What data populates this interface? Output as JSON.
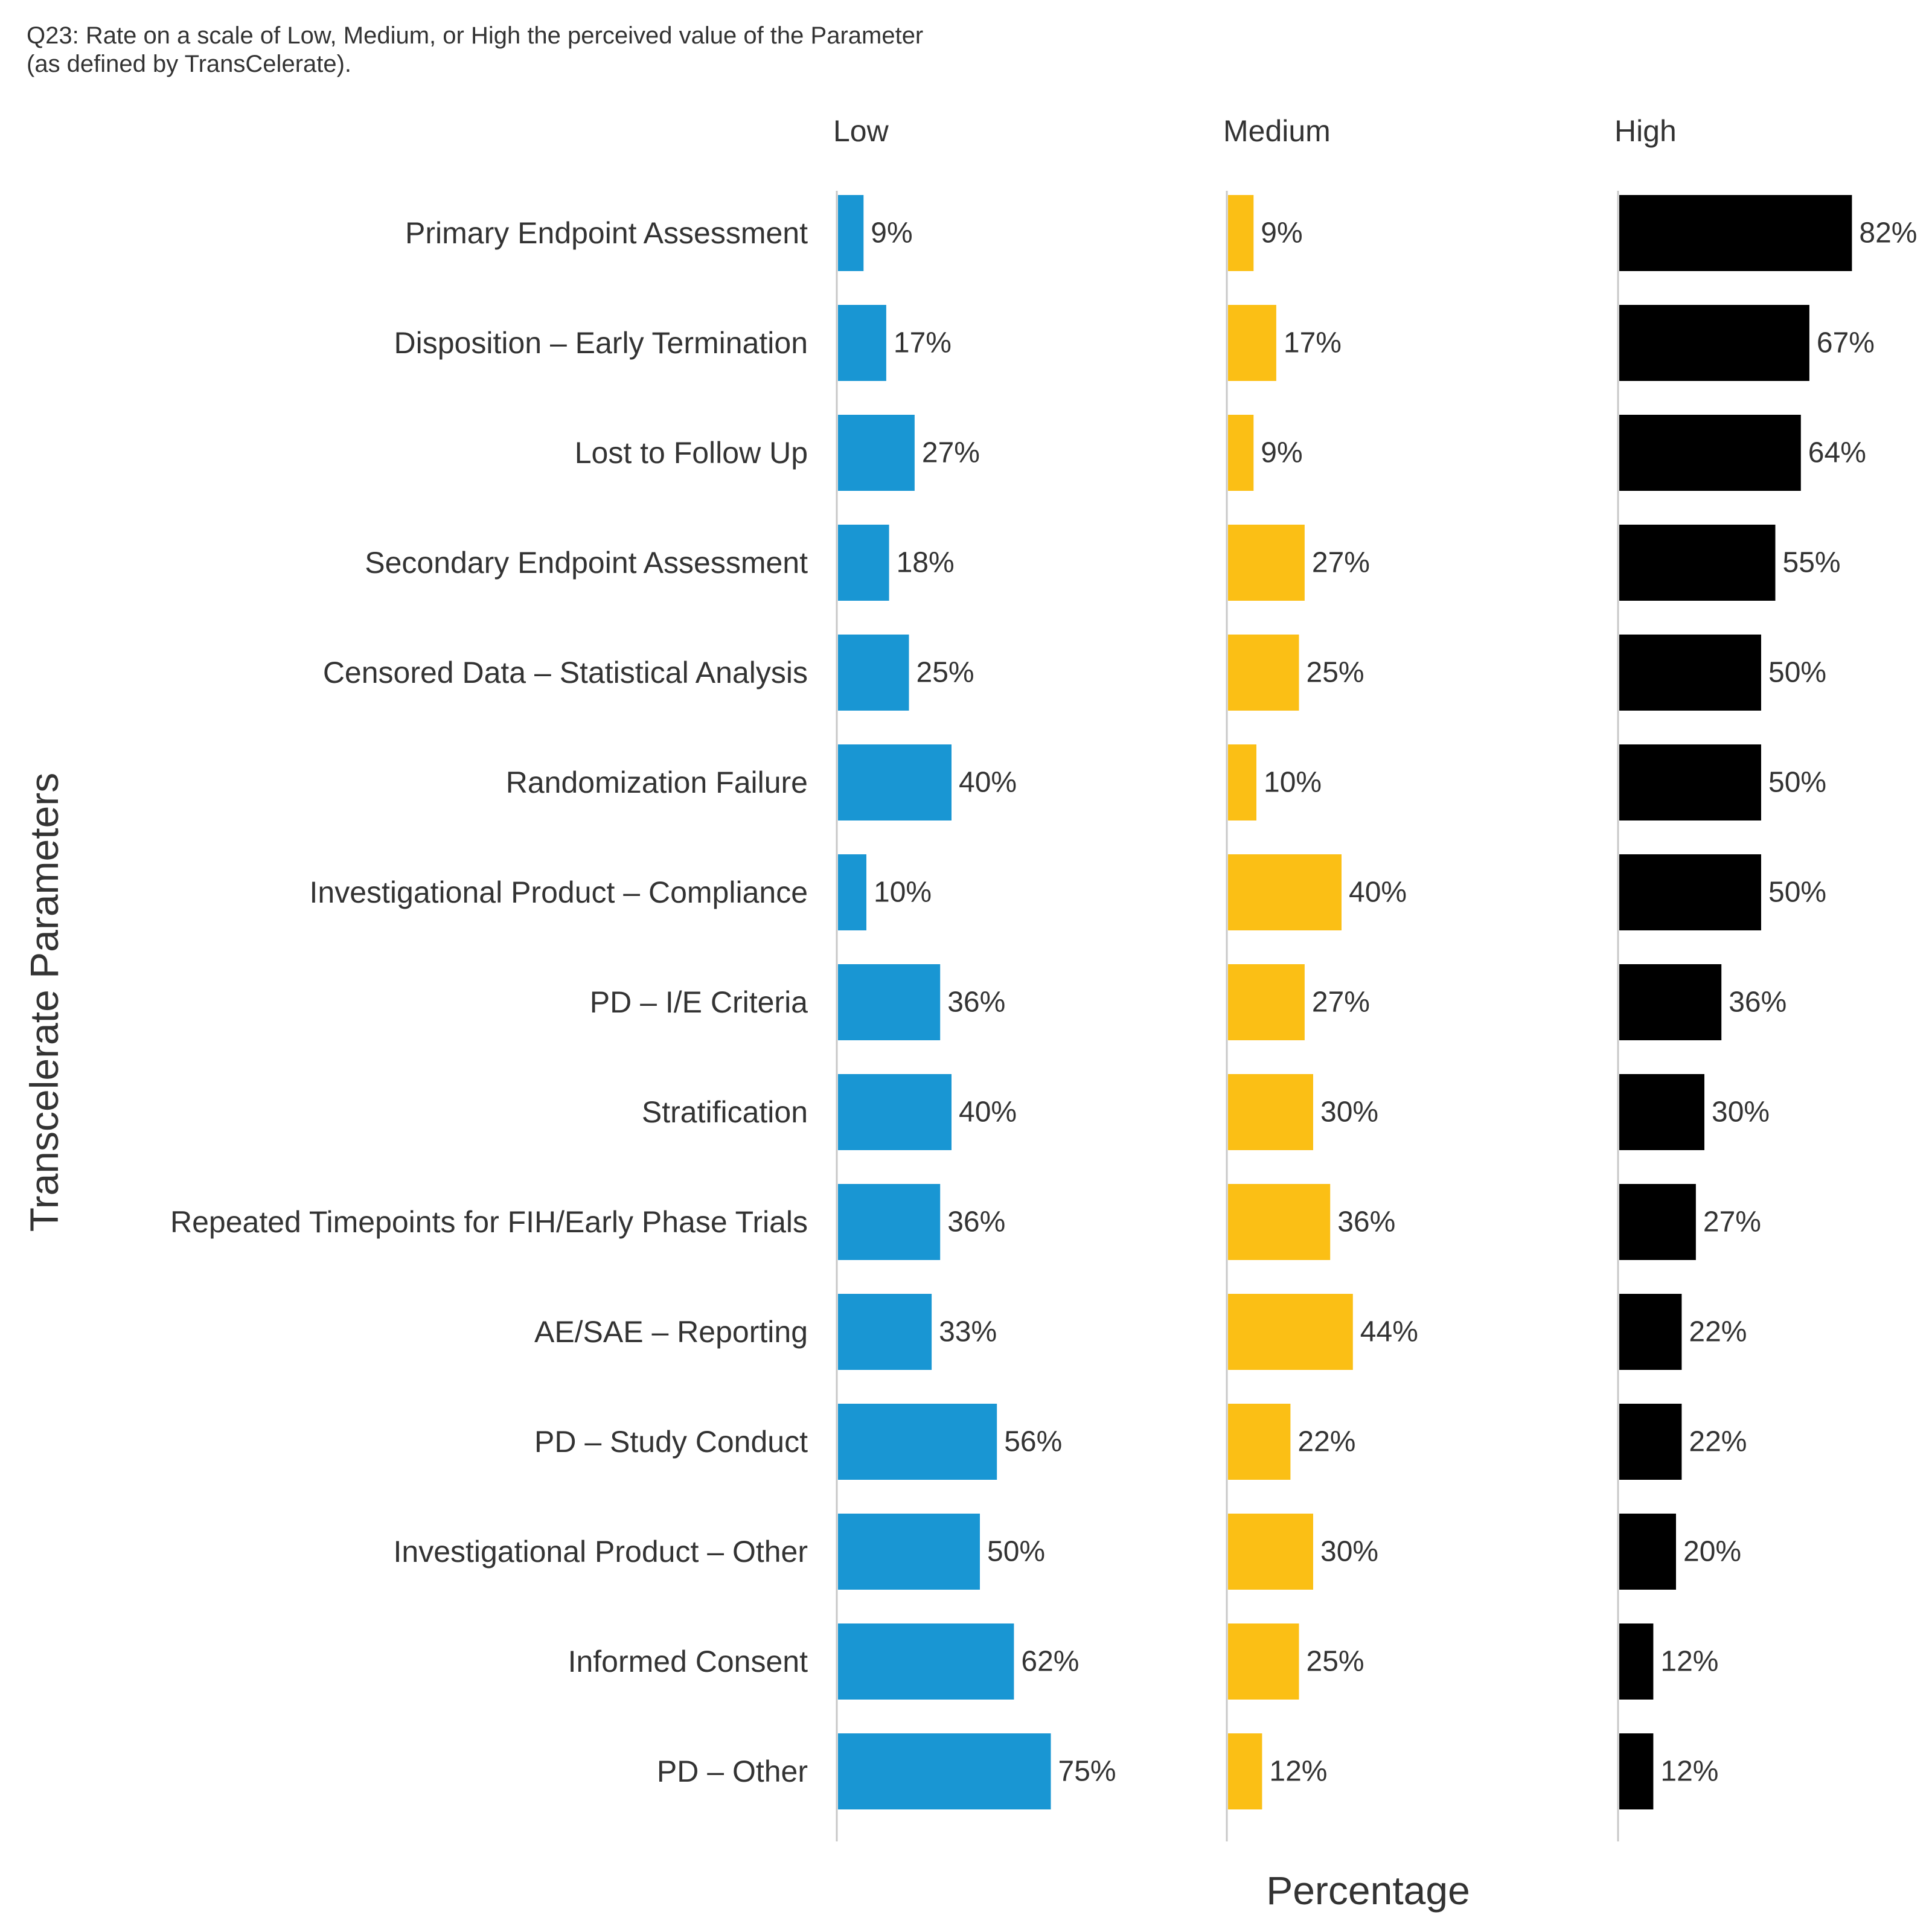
{
  "chart_data": {
    "type": "bar",
    "orientation": "horizontal",
    "title": "Q23: Rate on a scale of Low, Medium, or High the perceived value of the Parameter\n(as defined by TransCelerate).",
    "xlabel": "Percentage",
    "ylabel": "Transcelerate Parameters",
    "grid": false,
    "legend": "none",
    "value_suffix": "%",
    "categories": [
      "Primary Endpoint Assessment",
      "Disposition – Early Termination",
      "Lost to Follow Up",
      "Secondary Endpoint Assessment",
      "Censored Data – Statistical Analysis",
      "Randomization Failure",
      "Investigational Product – Compliance",
      "PD – I/E Criteria",
      "Stratification",
      "Repeated Timepoints for FIH/Early Phase Trials",
      "AE/SAE – Reporting",
      "PD – Study Conduct",
      "Investigational Product – Other",
      "Informed Consent",
      "PD – Other"
    ],
    "series": [
      {
        "name": "Low",
        "color": "#1996D3",
        "values": [
          9,
          17,
          27,
          18,
          25,
          40,
          10,
          36,
          40,
          36,
          33,
          56,
          50,
          62,
          75
        ]
      },
      {
        "name": "Medium",
        "color": "#FBBF15",
        "values": [
          9,
          17,
          9,
          27,
          25,
          10,
          40,
          27,
          30,
          36,
          44,
          22,
          30,
          25,
          12
        ]
      },
      {
        "name": "High",
        "color": "#000000",
        "values": [
          82,
          67,
          64,
          55,
          50,
          50,
          50,
          36,
          30,
          27,
          22,
          22,
          20,
          12,
          12
        ]
      }
    ],
    "xlim": [
      0,
      100
    ]
  }
}
